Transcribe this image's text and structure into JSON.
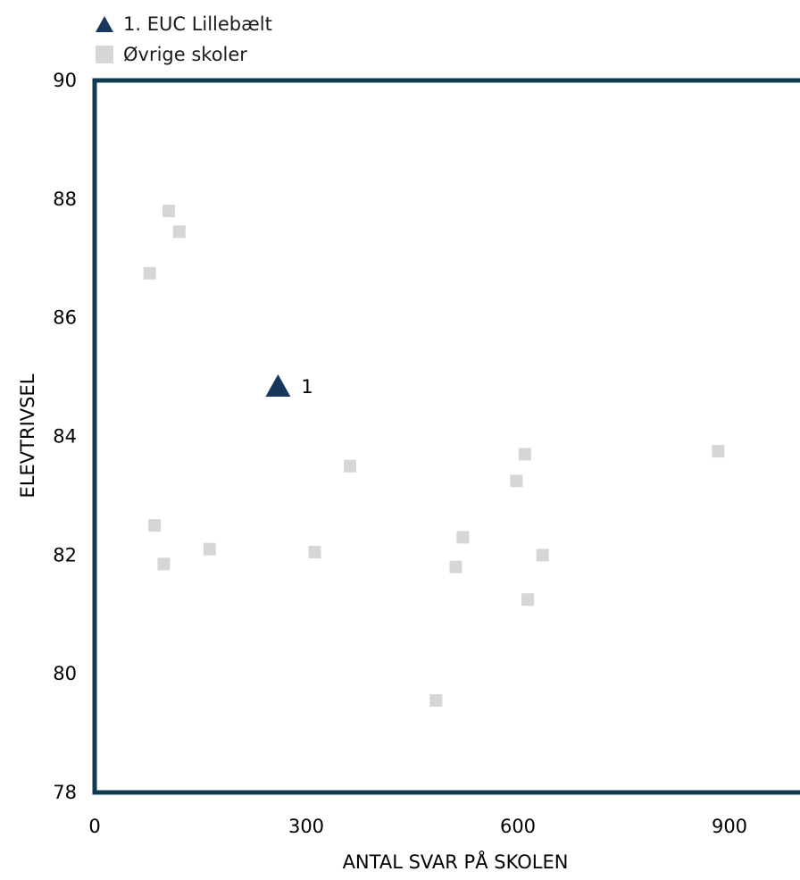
{
  "legend": {
    "items": [
      {
        "label": "1. EUC Lillebælt",
        "marker": "triangle",
        "color": "#17385c"
      },
      {
        "label": "Øvrige skoler",
        "marker": "square",
        "color": "#d6d6d6"
      }
    ]
  },
  "chart_data": {
    "type": "scatter",
    "title": "",
    "xlabel": "ANTAL SVAR PÅ SKOLEN",
    "ylabel": "ELEVTRIVSEL",
    "xlim": [
      0,
      1000
    ],
    "ylim": [
      78,
      90
    ],
    "x_ticks": [
      0,
      300,
      600,
      900
    ],
    "y_ticks": [
      78,
      80,
      82,
      84,
      86,
      88,
      90
    ],
    "grid": false,
    "frame_color": "#0d3b52",
    "series": [
      {
        "name": "1. EUC Lillebælt",
        "marker": "triangle",
        "color": "#17385c",
        "points": [
          {
            "x": 260,
            "y": 84.85,
            "label": "1"
          }
        ]
      },
      {
        "name": "Øvrige skoler",
        "marker": "square",
        "color": "#d6d6d6",
        "points": [
          {
            "x": 105,
            "y": 87.8
          },
          {
            "x": 120,
            "y": 87.45
          },
          {
            "x": 78,
            "y": 86.75
          },
          {
            "x": 85,
            "y": 82.5
          },
          {
            "x": 98,
            "y": 81.85
          },
          {
            "x": 163,
            "y": 82.1
          },
          {
            "x": 312,
            "y": 82.05
          },
          {
            "x": 362,
            "y": 83.5
          },
          {
            "x": 484,
            "y": 79.55
          },
          {
            "x": 512,
            "y": 81.8
          },
          {
            "x": 522,
            "y": 82.3
          },
          {
            "x": 598,
            "y": 83.25
          },
          {
            "x": 610,
            "y": 83.7
          },
          {
            "x": 614,
            "y": 81.25
          },
          {
            "x": 635,
            "y": 82.0
          },
          {
            "x": 884,
            "y": 83.75
          }
        ]
      }
    ]
  }
}
